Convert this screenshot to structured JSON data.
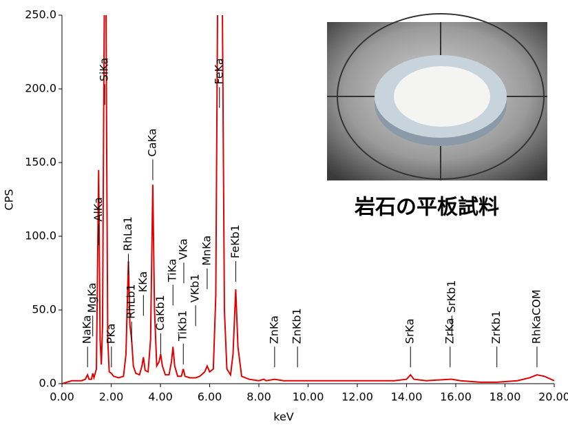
{
  "caption": "岩石の平板試料",
  "chart_data": {
    "type": "line",
    "x_label": "keV",
    "y_label": "CPS",
    "color": "#e00000",
    "xlim": [
      0,
      20
    ],
    "ylim": [
      0,
      250
    ],
    "xticks": [
      {
        "value": 0,
        "label": "0.00"
      },
      {
        "value": 2,
        "label": "2.00"
      },
      {
        "value": 4,
        "label": "4.00"
      },
      {
        "value": 6,
        "label": "6.00"
      },
      {
        "value": 8,
        "label": "8.00"
      },
      {
        "value": 10,
        "label": "10.00"
      },
      {
        "value": 12,
        "label": "12.00"
      },
      {
        "value": 14,
        "label": "14.00"
      },
      {
        "value": 16,
        "label": "16.00"
      },
      {
        "value": 18,
        "label": "18.00"
      },
      {
        "value": 20,
        "label": "20.00"
      }
    ],
    "yticks": [
      {
        "value": 0,
        "label": "0.0"
      },
      {
        "value": 50,
        "label": "50.0"
      },
      {
        "value": 100,
        "label": "100.0"
      },
      {
        "value": 150,
        "label": "150.0"
      },
      {
        "value": 200,
        "label": "200.0"
      },
      {
        "value": 250,
        "label": "250.0"
      }
    ],
    "x": [
      0.0,
      0.2,
      0.4,
      0.6,
      0.8,
      0.95,
      1.04,
      1.1,
      1.2,
      1.25,
      1.3,
      1.4,
      1.49,
      1.55,
      1.6,
      1.65,
      1.7,
      1.74,
      1.78,
      1.82,
      1.86,
      1.92,
      2.01,
      2.1,
      2.3,
      2.5,
      2.6,
      2.7,
      2.76,
      2.83,
      2.9,
      3.0,
      3.15,
      3.25,
      3.31,
      3.38,
      3.5,
      3.6,
      3.69,
      3.76,
      3.85,
      3.95,
      4.01,
      4.08,
      4.2,
      4.35,
      4.45,
      4.51,
      4.58,
      4.7,
      4.85,
      4.93,
      5.0,
      5.2,
      5.43,
      5.6,
      5.8,
      5.9,
      6.0,
      6.15,
      6.25,
      6.32,
      6.38,
      6.45,
      6.52,
      6.6,
      6.7,
      6.85,
      6.95,
      7.06,
      7.15,
      7.3,
      7.6,
      8.0,
      8.2,
      8.3,
      8.64,
      9.0,
      9.57,
      10.5,
      11.5,
      12.5,
      13.5,
      14.0,
      14.16,
      14.3,
      14.8,
      15.77,
      15.84,
      16.2,
      17.0,
      17.67,
      18.5,
      19.0,
      19.3,
      19.6,
      20.0
    ],
    "values": [
      0,
      1,
      2,
      2,
      2,
      3,
      6,
      3,
      3,
      7,
      4,
      10,
      145,
      30,
      13,
      40,
      200,
      300,
      300,
      150,
      30,
      8,
      7,
      5,
      4,
      5,
      20,
      83,
      40,
      30,
      12,
      7,
      6,
      12,
      18,
      9,
      8,
      30,
      135,
      50,
      12,
      15,
      20,
      12,
      6,
      6,
      15,
      25,
      12,
      5,
      5,
      10,
      5,
      4,
      4,
      5,
      8,
      12,
      8,
      10,
      60,
      250,
      400,
      400,
      250,
      50,
      10,
      6,
      20,
      64,
      25,
      5,
      3,
      2,
      3,
      2,
      3,
      2,
      2,
      2,
      2,
      2,
      2,
      3,
      6,
      3,
      2,
      3,
      3,
      2,
      1,
      1,
      2,
      4,
      6,
      5,
      2
    ],
    "annotations": [
      {
        "text": "NaKa",
        "x": 1.04,
        "y": 27
      },
      {
        "text": "MgKa",
        "x": 1.25,
        "y": 48
      },
      {
        "text": "AlKa",
        "x": 1.49,
        "y": 110
      },
      {
        "text": "SiKa",
        "x": 1.74,
        "y": 205
      },
      {
        "text": "PKa",
        "x": 2.01,
        "y": 27
      },
      {
        "text": "RhLa1",
        "x": 2.7,
        "y": 90
      },
      {
        "text": "RhLb1",
        "x": 2.83,
        "y": 44
      },
      {
        "text": "KKa",
        "x": 3.31,
        "y": 62
      },
      {
        "text": "CaKa",
        "x": 3.69,
        "y": 154
      },
      {
        "text": "CaKb1",
        "x": 4.01,
        "y": 36
      },
      {
        "text": "TiKa",
        "x": 4.51,
        "y": 69
      },
      {
        "text": "TiKb1",
        "x": 4.93,
        "y": 29
      },
      {
        "text": "VKa",
        "x": 4.95,
        "y": 84
      },
      {
        "text": "VKb1",
        "x": 5.43,
        "y": 55
      },
      {
        "text": "MnKa",
        "x": 5.9,
        "y": 80
      },
      {
        "text": "FeKa",
        "x": 6.4,
        "y": 203
      },
      {
        "text": "FeKb1",
        "x": 7.06,
        "y": 85
      },
      {
        "text": "ZnKa",
        "x": 8.64,
        "y": 27
      },
      {
        "text": "ZnKb1",
        "x": 9.57,
        "y": 27
      },
      {
        "text": "SrKa",
        "x": 14.16,
        "y": 27
      },
      {
        "text": "ZrKa",
        "x": 15.77,
        "y": 27
      },
      {
        "text": "SrKb1",
        "x": 15.84,
        "y": 48
      },
      {
        "text": "ZrKb1",
        "x": 17.67,
        "y": 27
      },
      {
        "text": "RhKaCOM",
        "x": 19.3,
        "y": 27
      }
    ]
  }
}
